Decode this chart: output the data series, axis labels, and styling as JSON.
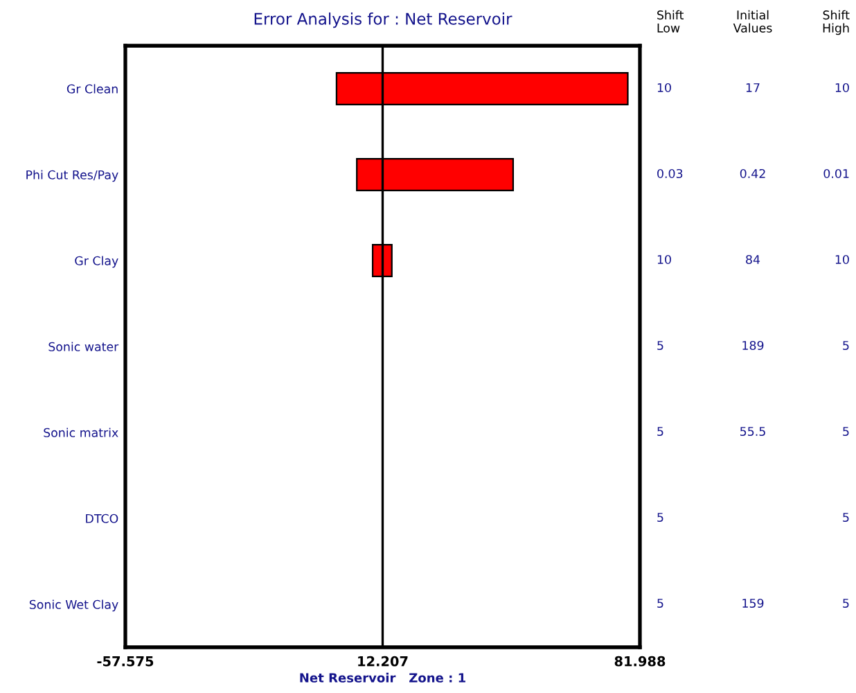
{
  "chart_data": [
    {
      "type": "bar",
      "orientation": "horizontal",
      "title": "Error Analysis for : Net Reservoir",
      "xlabel": "Net Reservoir   Zone : 1",
      "categories": [
        "Gr Clean",
        "Phi Cut Res/Pay",
        "Gr Clay",
        "Sonic water",
        "Sonic matrix",
        "DTCO",
        "Sonic Wet Clay"
      ],
      "base": [
        -0.3,
        5.2,
        9.5,
        null,
        null,
        null,
        null
      ],
      "values": [
        79.0,
        42.4,
        5.2,
        null,
        null,
        null,
        null
      ],
      "color": "#ff0000",
      "xlim": [
        -57.575,
        81.988
      ],
      "xticks": [
        -57.575,
        12.207,
        81.988
      ],
      "ref_lines": [
        {
          "axis": "x",
          "value": 12.207,
          "color": "#000000"
        }
      ]
    },
    {
      "type": "other",
      "categories": [
        "Shift\nLow",
        "Initial\nValues",
        "Shift\nHigh"
      ],
      "cell_labels": [
        [
          "10",
          "17",
          "10"
        ],
        [
          "0.03",
          "0.42",
          "0.01"
        ],
        [
          "10",
          "84",
          "10"
        ],
        [
          "5",
          "189",
          "5"
        ],
        [
          "5",
          "55.5",
          "5"
        ],
        [
          "5",
          null,
          "5"
        ],
        [
          "5",
          "159",
          "5"
        ]
      ]
    }
  ]
}
